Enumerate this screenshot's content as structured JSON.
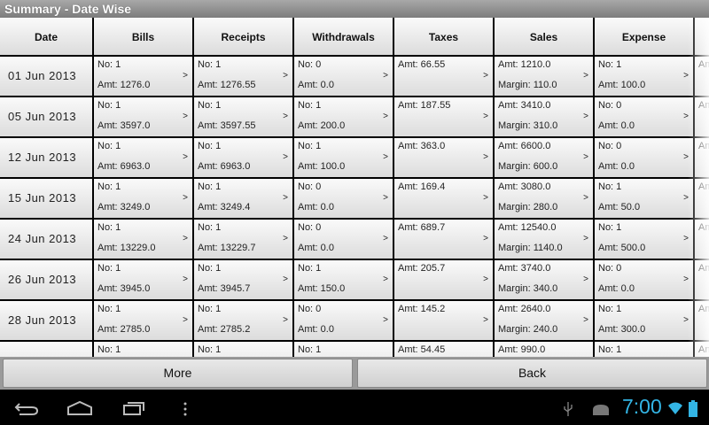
{
  "title": "Summary - Date Wise",
  "headers": [
    "Date",
    "Bills",
    "Receipts",
    "Withdrawals",
    "Taxes",
    "Sales",
    "Expense",
    ""
  ],
  "rows": [
    {
      "date": "01  Jun  2013",
      "cells": [
        [
          "No: 1",
          "Amt: 1276.0"
        ],
        [
          "No: 1",
          "Amt: 1276.55"
        ],
        [
          "No: 0",
          "Amt: 0.0"
        ],
        [
          "Amt: 66.55",
          ""
        ],
        [
          "Amt: 1210.0",
          "Margin: 110.0"
        ],
        [
          "No: 1",
          "Amt: 100.0"
        ],
        [
          "Am",
          ""
        ]
      ]
    },
    {
      "date": "05  Jun  2013",
      "cells": [
        [
          "No: 1",
          "Amt: 3597.0"
        ],
        [
          "No: 1",
          "Amt: 3597.55"
        ],
        [
          "No: 1",
          "Amt: 200.0"
        ],
        [
          "Amt: 187.55",
          ""
        ],
        [
          "Amt: 3410.0",
          "Margin: 310.0"
        ],
        [
          "No: 0",
          "Amt: 0.0"
        ],
        [
          "Am",
          ""
        ]
      ]
    },
    {
      "date": "12  Jun  2013",
      "cells": [
        [
          "No: 1",
          "Amt: 6963.0"
        ],
        [
          "No: 1",
          "Amt: 6963.0"
        ],
        [
          "No: 1",
          "Amt: 100.0"
        ],
        [
          "Amt: 363.0",
          ""
        ],
        [
          "Amt: 6600.0",
          "Margin: 600.0"
        ],
        [
          "No: 0",
          "Amt: 0.0"
        ],
        [
          "Am",
          ""
        ]
      ]
    },
    {
      "date": "15  Jun  2013",
      "cells": [
        [
          "No: 1",
          "Amt: 3249.0"
        ],
        [
          "No: 1",
          "Amt: 3249.4"
        ],
        [
          "No: 0",
          "Amt: 0.0"
        ],
        [
          "Amt: 169.4",
          ""
        ],
        [
          "Amt: 3080.0",
          "Margin: 280.0"
        ],
        [
          "No: 1",
          "Amt: 50.0"
        ],
        [
          "Am",
          ""
        ]
      ]
    },
    {
      "date": "24  Jun  2013",
      "cells": [
        [
          "No: 1",
          "Amt: 13229.0"
        ],
        [
          "No: 1",
          "Amt: 13229.7"
        ],
        [
          "No: 0",
          "Amt: 0.0"
        ],
        [
          "Amt: 689.7",
          ""
        ],
        [
          "Amt: 12540.0",
          "Margin: 1140.0"
        ],
        [
          "No: 1",
          "Amt: 500.0"
        ],
        [
          "Am",
          ""
        ]
      ]
    },
    {
      "date": "26  Jun  2013",
      "cells": [
        [
          "No: 1",
          "Amt: 3945.0"
        ],
        [
          "No: 1",
          "Amt: 3945.7"
        ],
        [
          "No: 1",
          "Amt: 150.0"
        ],
        [
          "Amt: 205.7",
          ""
        ],
        [
          "Amt: 3740.0",
          "Margin: 340.0"
        ],
        [
          "No: 0",
          "Amt: 0.0"
        ],
        [
          "Am",
          ""
        ]
      ]
    },
    {
      "date": "28  Jun  2013",
      "cells": [
        [
          "No: 1",
          "Amt: 2785.0"
        ],
        [
          "No: 1",
          "Amt: 2785.2"
        ],
        [
          "No: 0",
          "Amt: 0.0"
        ],
        [
          "Amt: 145.2",
          ""
        ],
        [
          "Amt: 2640.0",
          "Margin: 240.0"
        ],
        [
          "No: 1",
          "Amt: 300.0"
        ],
        [
          "Am",
          ""
        ]
      ]
    },
    {
      "date": "",
      "cells": [
        [
          "No: 1",
          ""
        ],
        [
          "No: 1",
          ""
        ],
        [
          "No: 1",
          ""
        ],
        [
          "Amt: 54.45",
          ""
        ],
        [
          "Amt: 990.0",
          ""
        ],
        [
          "No: 1",
          ""
        ],
        [
          "An",
          ""
        ]
      ]
    }
  ],
  "arrow": ">",
  "buttons": {
    "more": "More",
    "back": "Back"
  },
  "status": {
    "time": "7:00",
    "accent": "#33b5e5"
  },
  "icons": [
    "back-icon",
    "home-icon",
    "recent-apps-icon",
    "menu-icon",
    "usb-icon",
    "android-debug-icon",
    "wifi-icon",
    "battery-icon"
  ]
}
